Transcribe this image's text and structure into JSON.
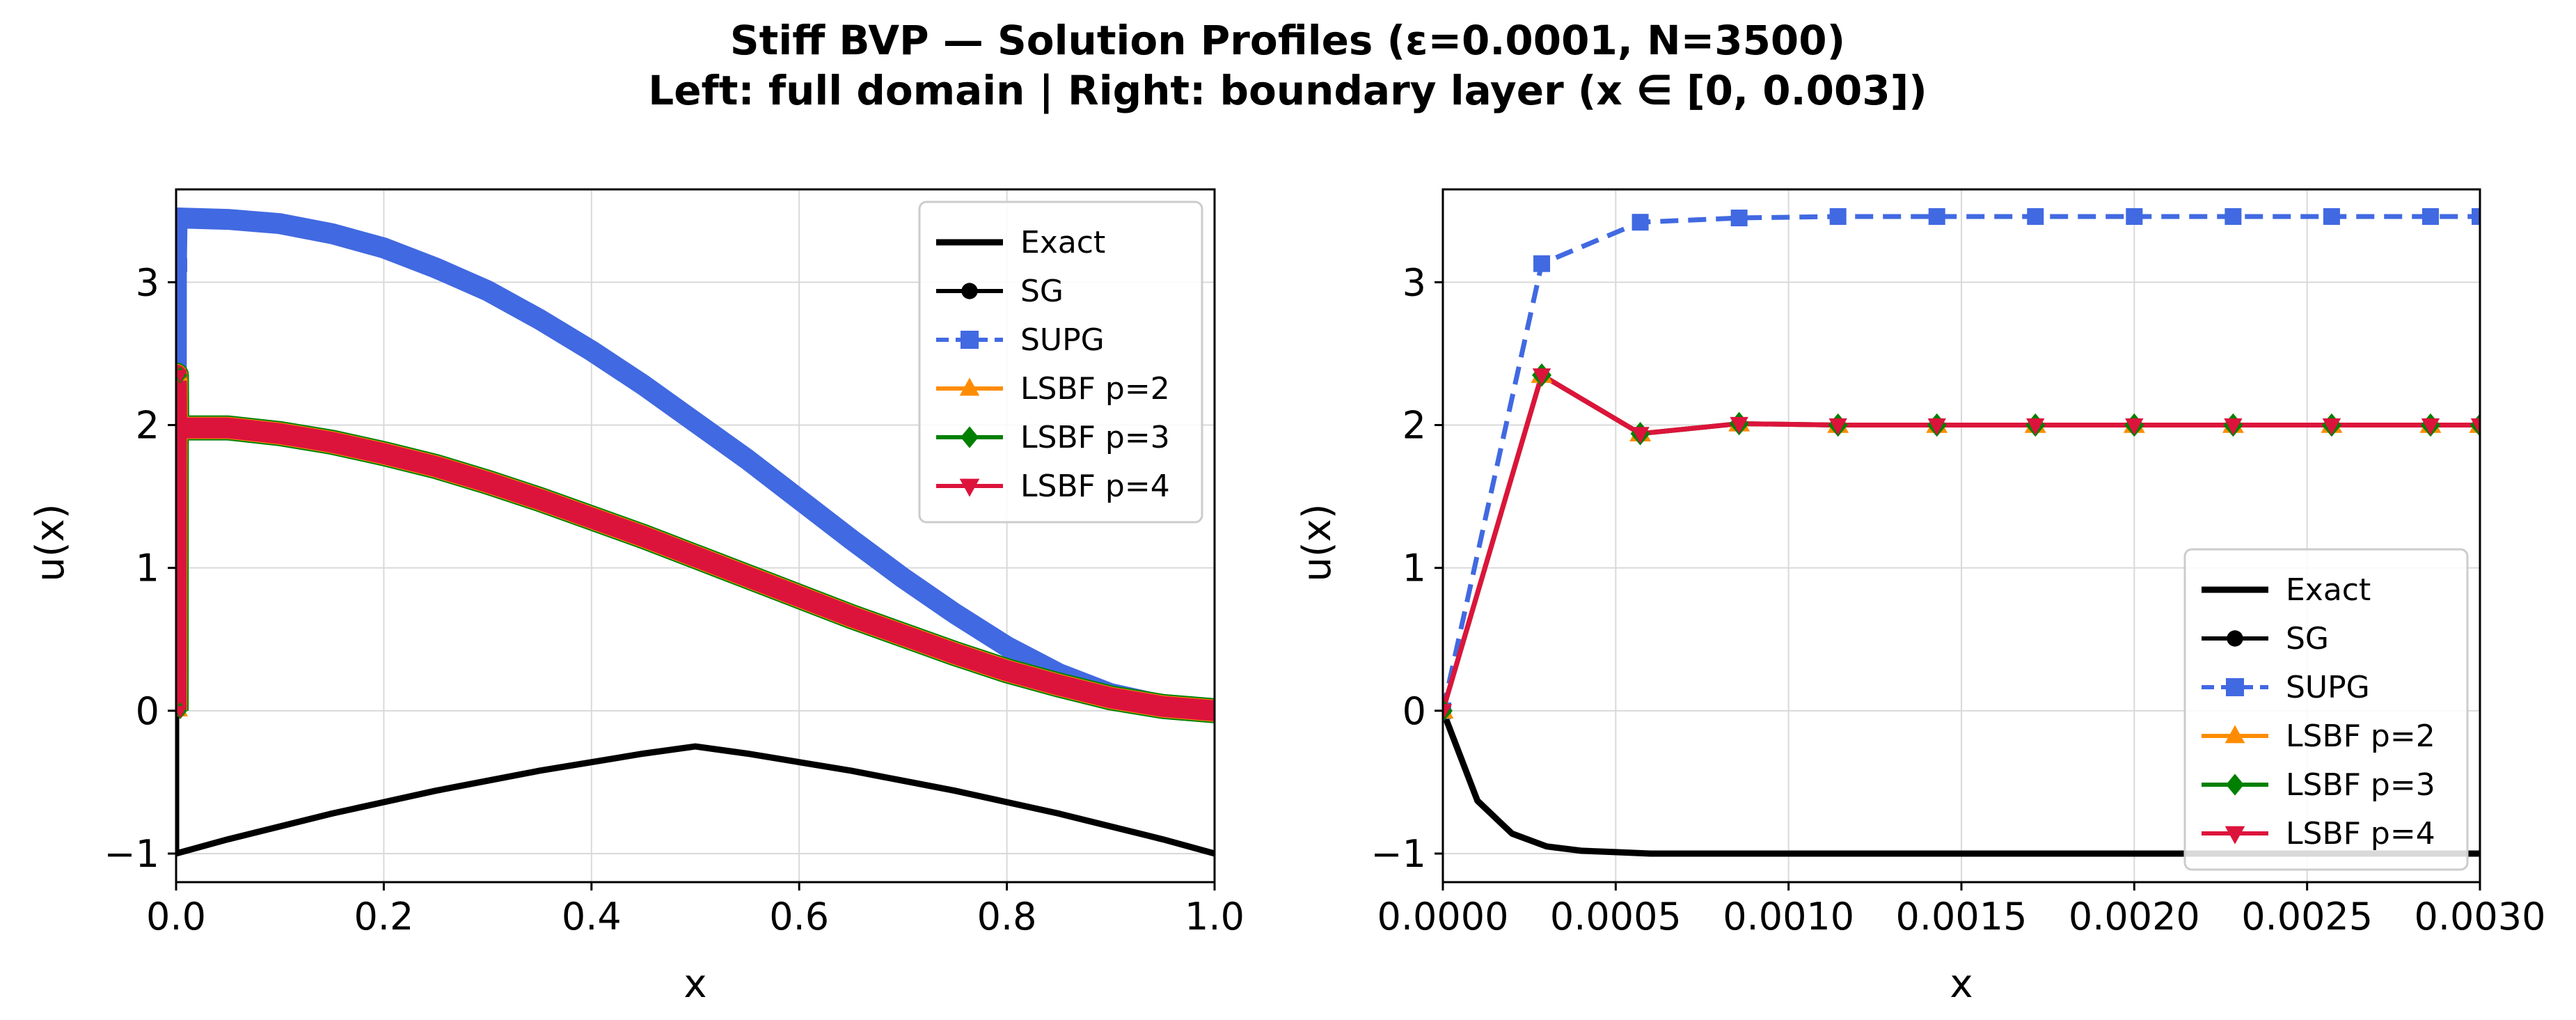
{
  "title_lines": [
    "Stiff BVP — Solution Profiles (ε=0.0001, N=3500)",
    "Left: full domain   |   Right: boundary layer (x ∈ [0, 0.003])"
  ],
  "colors": {
    "exact": "#000000",
    "sg": "#000000",
    "supg": "#4169e1",
    "lsbf2": "#ff8c00",
    "lsbf3": "#008000",
    "lsbf4": "#dc143c",
    "grid": "#d9d9d9"
  },
  "chart_data": [
    {
      "type": "line",
      "xlabel": "x",
      "ylabel": "u(x)",
      "xlim": [
        0.0,
        1.0
      ],
      "ylim": [
        -1.2,
        3.65
      ],
      "xticks": [
        "0.0",
        "0.2",
        "0.4",
        "0.6",
        "0.8",
        "1.0"
      ],
      "yticks": [
        "−1",
        "0",
        "1",
        "2",
        "3"
      ],
      "grid": true,
      "legend_position": "upper right",
      "legend": [
        "Exact",
        "SG",
        "SUPG",
        "LSBF p=2",
        "LSBF p=3",
        "LSBF p=4"
      ],
      "series": [
        {
          "name": "Exact",
          "x": [
            0,
            0,
            0.05,
            0.1,
            0.15,
            0.2,
            0.25,
            0.3,
            0.35,
            0.4,
            0.45,
            0.5,
            0.55,
            0.6,
            0.65,
            0.7,
            0.75,
            0.8,
            0.85,
            0.9,
            0.95,
            1.0
          ],
          "y": [
            0,
            -1,
            -0.9,
            -0.81,
            -0.72,
            -0.64,
            -0.56,
            -0.49,
            -0.42,
            -0.36,
            -0.3,
            -0.25,
            -0.3,
            -0.36,
            -0.42,
            -0.49,
            -0.56,
            -0.64,
            -0.72,
            -0.81,
            -0.9,
            -1.0
          ]
        },
        {
          "name": "SUPG",
          "x": [
            0,
            0.0003,
            0.001,
            0.05,
            0.1,
            0.15,
            0.2,
            0.25,
            0.3,
            0.35,
            0.4,
            0.45,
            0.5,
            0.55,
            0.6,
            0.65,
            0.7,
            0.75,
            0.8,
            0.85,
            0.9,
            0.95,
            1.0
          ],
          "y": [
            0,
            3.12,
            3.45,
            3.44,
            3.41,
            3.34,
            3.24,
            3.1,
            2.94,
            2.74,
            2.52,
            2.28,
            2.02,
            1.76,
            1.48,
            1.2,
            0.93,
            0.68,
            0.45,
            0.26,
            0.12,
            0.04,
            0.01
          ]
        },
        {
          "name": "LSBF p=4",
          "x": [
            0,
            0.0003,
            0.0006,
            0.05,
            0.1,
            0.15,
            0.2,
            0.25,
            0.3,
            0.35,
            0.4,
            0.45,
            0.5,
            0.55,
            0.6,
            0.65,
            0.7,
            0.75,
            0.8,
            0.85,
            0.9,
            0.95,
            1.0
          ],
          "y": [
            0,
            2.35,
            1.98,
            1.98,
            1.94,
            1.88,
            1.8,
            1.71,
            1.6,
            1.48,
            1.35,
            1.22,
            1.08,
            0.94,
            0.8,
            0.66,
            0.53,
            0.4,
            0.28,
            0.18,
            0.09,
            0.03,
            0.0
          ]
        }
      ]
    },
    {
      "type": "line",
      "xlabel": "x",
      "ylabel": "u(x)",
      "xlim": [
        0.0,
        0.003
      ],
      "ylim": [
        -1.2,
        3.65
      ],
      "xticks": [
        "0.0000",
        "0.0005",
        "0.0010",
        "0.0015",
        "0.0020",
        "0.0025",
        "0.0030"
      ],
      "yticks": [
        "−1",
        "0",
        "1",
        "2",
        "3"
      ],
      "grid": true,
      "legend_position": "lower right",
      "legend": [
        "Exact",
        "SG",
        "SUPG",
        "LSBF p=2",
        "LSBF p=3",
        "LSBF p=4"
      ],
      "series": [
        {
          "name": "Exact",
          "x": [
            0,
            0.0001,
            0.0002,
            0.0003,
            0.0004,
            0.0005,
            0.0006,
            0.0008,
            0.001,
            0.0015,
            0.002,
            0.0025,
            0.003
          ],
          "y": [
            0,
            -0.63,
            -0.86,
            -0.95,
            -0.98,
            -0.99,
            -1.0,
            -1.0,
            -1.0,
            -1.0,
            -1.0,
            -1.0,
            -1.0
          ]
        },
        {
          "name": "SUPG",
          "x": [
            0,
            0.000286,
            0.000571,
            0.000857,
            0.001143,
            0.001429,
            0.001714,
            0.002,
            0.002286,
            0.002571,
            0.002857,
            0.003
          ],
          "y": [
            0,
            3.13,
            3.42,
            3.45,
            3.46,
            3.46,
            3.46,
            3.46,
            3.46,
            3.46,
            3.46,
            3.46
          ]
        },
        {
          "name": "LSBF p=4",
          "x": [
            0,
            0.000286,
            0.000571,
            0.000857,
            0.001143,
            0.001429,
            0.001714,
            0.002,
            0.002286,
            0.002571,
            0.002857,
            0.003
          ],
          "y": [
            0,
            2.35,
            1.94,
            2.01,
            2.0,
            2.0,
            2.0,
            2.0,
            2.0,
            2.0,
            2.0,
            2.0
          ]
        }
      ]
    }
  ]
}
